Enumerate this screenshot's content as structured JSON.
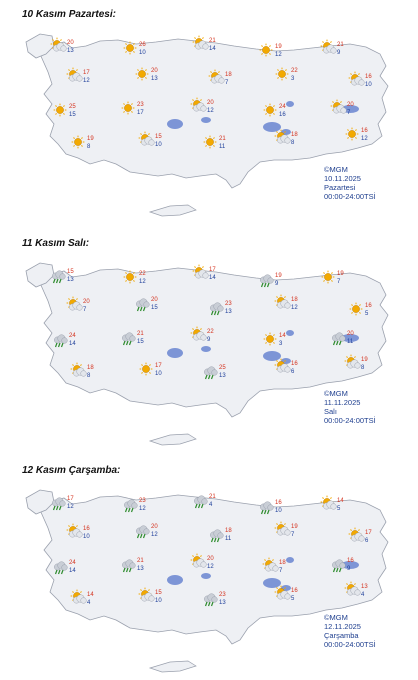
{
  "days": [
    {
      "title": "10 Kasım Pazartesi:",
      "credit": "©MGM",
      "date": "10.11.2025",
      "weekday": "Pazartesi",
      "hours": "00:00-24:00TSİ",
      "weather": [
        {
          "icon": "partly-cloudy-icon",
          "max": "20",
          "min": "13"
        },
        {
          "icon": "sunny-icon",
          "max": "26",
          "min": "10"
        },
        {
          "icon": "partly-cloudy-icon",
          "max": "21",
          "min": "14"
        },
        {
          "icon": "sunny-icon",
          "max": "19",
          "min": "12"
        },
        {
          "icon": "partly-cloudy-icon",
          "max": "21",
          "min": "9"
        },
        {
          "icon": "partly-cloudy-icon",
          "max": "17",
          "min": "12"
        },
        {
          "icon": "sunny-icon",
          "max": "20",
          "min": "13"
        },
        {
          "icon": "partly-cloudy-icon",
          "max": "18",
          "min": "7"
        },
        {
          "icon": "sunny-icon",
          "max": "22",
          "min": "3"
        },
        {
          "icon": "partly-cloudy-icon",
          "max": "16",
          "min": "10"
        },
        {
          "icon": "sunny-icon",
          "max": "25",
          "min": "15"
        },
        {
          "icon": "sunny-icon",
          "max": "23",
          "min": "17"
        },
        {
          "icon": "partly-cloudy-icon",
          "max": "20",
          "min": "12"
        },
        {
          "icon": "sunny-icon",
          "max": "24",
          "min": "16"
        },
        {
          "icon": "partly-cloudy-icon",
          "max": "20",
          "min": "7"
        },
        {
          "icon": "sunny-icon",
          "max": "19",
          "min": "8"
        },
        {
          "icon": "partly-cloudy-icon",
          "max": "15",
          "min": "10"
        },
        {
          "icon": "sunny-icon",
          "max": "21",
          "min": "11"
        },
        {
          "icon": "partly-cloudy-icon",
          "max": "18",
          "min": "8"
        },
        {
          "icon": "sunny-icon",
          "max": "16",
          "min": "12"
        }
      ]
    },
    {
      "title": "11 Kasım Salı:",
      "credit": "©MGM",
      "date": "11.11.2025",
      "weekday": "Salı",
      "hours": "00:00-24:00TSİ",
      "weather": [
        {
          "icon": "rain-icon",
          "max": "15",
          "min": "13"
        },
        {
          "icon": "sunny-icon",
          "max": "22",
          "min": "12"
        },
        {
          "icon": "partly-cloudy-icon",
          "max": "17",
          "min": "14"
        },
        {
          "icon": "rain-icon",
          "max": "19",
          "min": "9"
        },
        {
          "icon": "sunny-icon",
          "max": "19",
          "min": "7"
        },
        {
          "icon": "partly-cloudy-icon",
          "max": "20",
          "min": "7"
        },
        {
          "icon": "rain-icon",
          "max": "20",
          "min": "15"
        },
        {
          "icon": "rain-icon",
          "max": "23",
          "min": "13"
        },
        {
          "icon": "partly-cloudy-icon",
          "max": "18",
          "min": "12"
        },
        {
          "icon": "sunny-icon",
          "max": "16",
          "min": "5"
        },
        {
          "icon": "rain-icon",
          "max": "24",
          "min": "14"
        },
        {
          "icon": "rain-icon",
          "max": "21",
          "min": "15"
        },
        {
          "icon": "partly-cloudy-icon",
          "max": "22",
          "min": "9"
        },
        {
          "icon": "sunny-icon",
          "max": "14",
          "min": "3"
        },
        {
          "icon": "rain-icon",
          "max": "20",
          "min": "11"
        },
        {
          "icon": "partly-cloudy-icon",
          "max": "18",
          "min": "8"
        },
        {
          "icon": "sunny-icon",
          "max": "17",
          "min": "10"
        },
        {
          "icon": "rain-icon",
          "max": "25",
          "min": "13"
        },
        {
          "icon": "partly-cloudy-icon",
          "max": "16",
          "min": "6"
        },
        {
          "icon": "partly-cloudy-icon",
          "max": "19",
          "min": "8"
        }
      ]
    },
    {
      "title": "12 Kasım Çarşamba:",
      "credit": "©MGM",
      "date": "12.11.2025",
      "weekday": "Çarşamba",
      "hours": "00:00-24:00TSİ",
      "weather": [
        {
          "icon": "rain-icon",
          "max": "17",
          "min": "12"
        },
        {
          "icon": "rain-icon",
          "max": "23",
          "min": "12"
        },
        {
          "icon": "rain-icon",
          "max": "21",
          "min": "4"
        },
        {
          "icon": "rain-icon",
          "max": "16",
          "min": "10"
        },
        {
          "icon": "partly-cloudy-icon",
          "max": "14",
          "min": "5"
        },
        {
          "icon": "partly-cloudy-icon",
          "max": "16",
          "min": "10"
        },
        {
          "icon": "rain-icon",
          "max": "20",
          "min": "12"
        },
        {
          "icon": "rain-icon",
          "max": "18",
          "min": "11"
        },
        {
          "icon": "partly-cloudy-icon",
          "max": "19",
          "min": "7"
        },
        {
          "icon": "partly-cloudy-icon",
          "max": "17",
          "min": "6"
        },
        {
          "icon": "rain-icon",
          "max": "24",
          "min": "14"
        },
        {
          "icon": "rain-icon",
          "max": "21",
          "min": "13"
        },
        {
          "icon": "partly-cloudy-icon",
          "max": "20",
          "min": "12"
        },
        {
          "icon": "partly-cloudy-icon",
          "max": "18",
          "min": "7"
        },
        {
          "icon": "rain-icon",
          "max": "16",
          "min": "9"
        },
        {
          "icon": "partly-cloudy-icon",
          "max": "14",
          "min": "4"
        },
        {
          "icon": "partly-cloudy-icon",
          "max": "15",
          "min": "10"
        },
        {
          "icon": "rain-icon",
          "max": "23",
          "min": "13"
        },
        {
          "icon": "partly-cloudy-icon",
          "max": "16",
          "min": "5"
        },
        {
          "icon": "partly-cloudy-icon",
          "max": "13",
          "min": "4"
        }
      ]
    }
  ],
  "colors": {
    "land": "#eef0f4",
    "border": "#9aa0ad",
    "lake": "#7d95d6",
    "max_temp": "#d4321e",
    "min_temp": "#1f3f9a",
    "sun": "#f2a900",
    "cloud": "#c9ced6",
    "rain": "#2e8b2e"
  }
}
